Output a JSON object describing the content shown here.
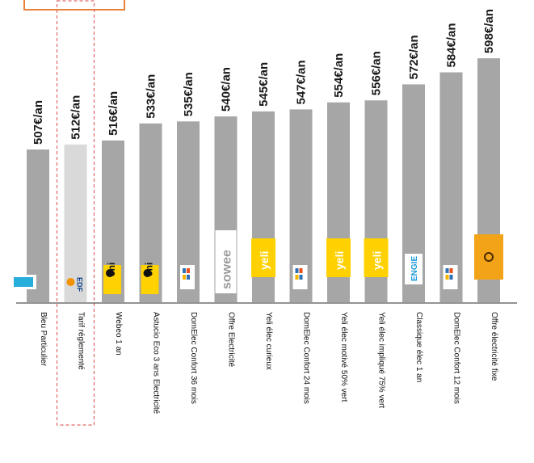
{
  "chart_data": {
    "type": "bar",
    "title": "",
    "xlabel": "",
    "ylabel": "",
    "categories": [
      "Bleu Particulier",
      "Tarif réglementé",
      "Webeo 1 an",
      "Astucio Eco 3 ans Electricité",
      "DomElec Confort 36 mois",
      "Offre Electricité",
      "Yeli élec curieux",
      "DomElec Confort 24 mois",
      "Yeli élec motivé 50% vert",
      "Yeli élec impliqué 75% vert",
      "Classique élec 1 an",
      "DomElec Confort 12 mois",
      "Offre électricité fixe"
    ],
    "value_labels": [
      "507€/an",
      "512€/an",
      "516€/an",
      "533€/an",
      "535€/an",
      "540€/an",
      "545€/an",
      "547€/an",
      "554€/an",
      "556€/an",
      "572€/an",
      "584€/an",
      "598€/an"
    ],
    "values": [
      507,
      512,
      516,
      533,
      535,
      540,
      545,
      547,
      554,
      556,
      572,
      584,
      598
    ],
    "highlighted_category": "Tarif réglementé",
    "colors": {
      "bar": "#a6a6a6",
      "highlight_bar": "#d9d9d9",
      "highlight_outline": "#e06666",
      "top_box_border": "#e8823a"
    },
    "logos": [
      {
        "category": "Bleu Particulier",
        "icon": "ekwateur-logo"
      },
      {
        "category": "Tarif réglementé",
        "icon": "edf-logo",
        "text": "EDF"
      },
      {
        "category": "Webeo 1 an",
        "icon": "eni-logo",
        "text": "eni"
      },
      {
        "category": "Astucio Eco 3 ans Electricité",
        "icon": "eni-logo",
        "text": "eni"
      },
      {
        "category": "DomElec Confort 36 mois",
        "icon": "energies-logo"
      },
      {
        "category": "Offre Electricité",
        "icon": "sowee-logo",
        "text": "sowee"
      },
      {
        "category": "Yeli élec curieux",
        "icon": "yeli-logo",
        "text": "yeli"
      },
      {
        "category": "DomElec Confort 24 mois",
        "icon": "energies-logo"
      },
      {
        "category": "Yeli élec motivé 50% vert",
        "icon": "yeli-logo",
        "text": "yeli"
      },
      {
        "category": "Yeli élec impliqué 75% vert",
        "icon": "yeli-logo",
        "text": "yeli"
      },
      {
        "category": "Classique élec 1 an",
        "icon": "engie-logo",
        "text": "ENGIE"
      },
      {
        "category": "DomElec Confort 12 mois",
        "icon": "energies-logo"
      },
      {
        "category": "Offre électricité fixe",
        "icon": "total-logo"
      }
    ]
  }
}
